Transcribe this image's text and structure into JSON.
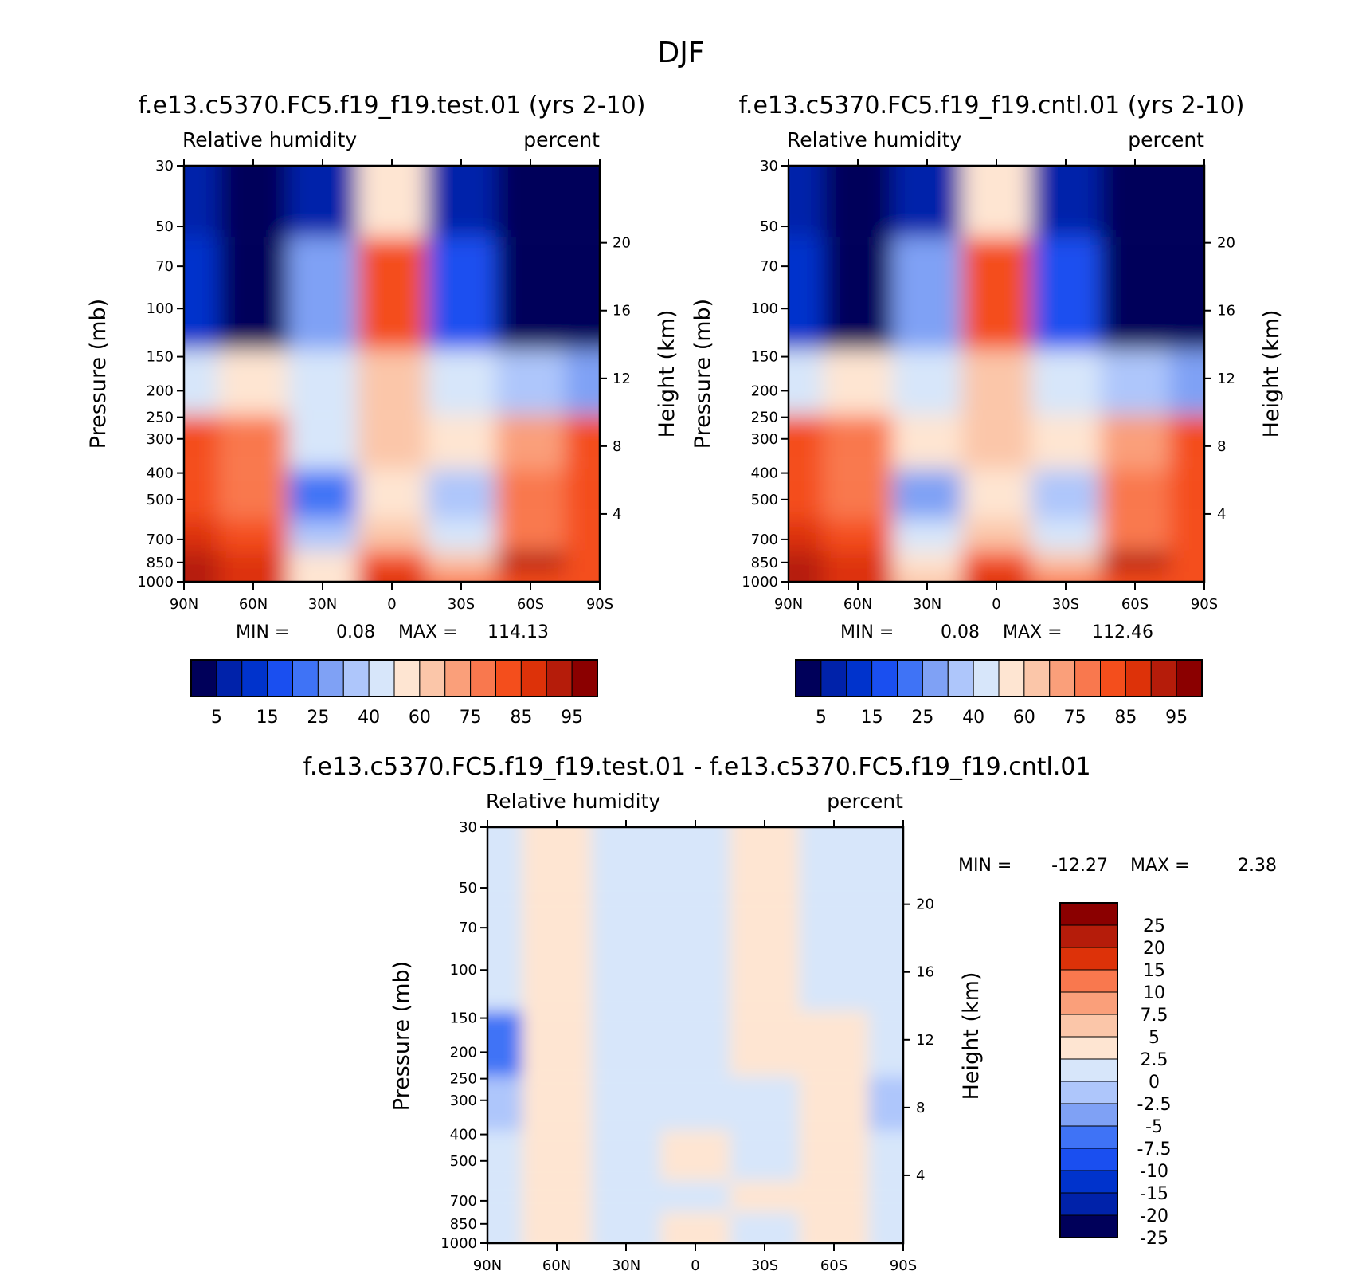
{
  "figure": {
    "title": "DJF",
    "colors": {
      "abs_scale": [
        "#00005a",
        "#0022aa",
        "#0033cc",
        "#1a4ff0",
        "#3f73f6",
        "#7fa1f5",
        "#aec6fb",
        "#d7e6fa",
        "#fee5d2",
        "#fbc6a9",
        "#fa9f7a",
        "#f9784e",
        "#f44e1c",
        "#dd3209",
        "#b51c0a",
        "#8b0000"
      ],
      "diff_scale": [
        "#8b0000",
        "#b51c0a",
        "#dd3209",
        "#f9784e",
        "#fa9f7a",
        "#fbc6a9",
        "#fee5d2",
        "#d7e6fa",
        "#aec6fb",
        "#7fa1f5",
        "#3f73f6",
        "#1a4ff0",
        "#0033cc",
        "#0022aa",
        "#00005a"
      ]
    }
  },
  "panels": [
    {
      "case": "f.e13.c5370.FC5.f19_f19.test.01 (yrs 2-10)",
      "left_label": "Relative humidity",
      "right_label": "percent",
      "min_label": "MIN =",
      "min_value": "0.08",
      "max_label": "MAX =",
      "max_value": "114.13"
    },
    {
      "case": "f.e13.c5370.FC5.f19_f19.cntl.01 (yrs 2-10)",
      "left_label": "Relative humidity",
      "right_label": "percent",
      "min_label": "MIN =",
      "min_value": "0.08",
      "max_label": "MAX =",
      "max_value": "112.46"
    },
    {
      "case": "f.e13.c5370.FC5.f19_f19.test.01 - f.e13.c5370.FC5.f19_f19.cntl.01",
      "left_label": "Relative humidity",
      "right_label": "percent",
      "min_label": "MIN =",
      "min_value": "-12.27",
      "max_label": "MAX =",
      "max_value": "2.38"
    }
  ],
  "axes": {
    "ylabel": "Pressure (mb)",
    "y2label": "Height (km)",
    "pressure_ticks": [
      "30",
      "50",
      "70",
      "100",
      "150",
      "200",
      "250",
      "300",
      "400",
      "500",
      "700",
      "850",
      "1000"
    ],
    "height_ticks": [
      "20",
      "16",
      "12",
      "8",
      "4"
    ],
    "lat_ticks": [
      "90N",
      "60N",
      "30N",
      "0",
      "30S",
      "60S",
      "90S"
    ]
  },
  "colorbars": {
    "abs_labels": [
      "5",
      "15",
      "25",
      "40",
      "60",
      "75",
      "85",
      "95"
    ],
    "diff_labels": [
      "25",
      "20",
      "15",
      "10",
      "7.5",
      "5",
      "2.5",
      "0",
      "-2.5",
      "-5",
      "-7.5",
      "-10",
      "-15",
      "-20",
      "-25"
    ]
  },
  "chart_data": [
    {
      "type": "heatmap",
      "title": "f.e13.c5370.FC5.f19_f19.test.01 (yrs 2-10)",
      "xlabel": "",
      "ylabel": "Pressure (mb)",
      "y2label": "Height (km)",
      "x": [
        90,
        60,
        30,
        0,
        -30,
        -60,
        -90
      ],
      "y": [
        30,
        100,
        200,
        300,
        500,
        700,
        850,
        1000
      ],
      "yscale": "log",
      "ylim": [
        30,
        1000
      ],
      "z": [
        [
          10,
          3,
          10,
          60,
          8,
          3,
          2
        ],
        [
          12,
          5,
          30,
          85,
          20,
          3,
          2
        ],
        [
          50,
          55,
          45,
          70,
          50,
          40,
          30
        ],
        [
          85,
          80,
          50,
          65,
          55,
          75,
          85
        ],
        [
          85,
          80,
          25,
          60,
          38,
          80,
          85
        ],
        [
          88,
          85,
          40,
          62,
          45,
          80,
          85
        ],
        [
          92,
          88,
          55,
          85,
          65,
          92,
          85
        ],
        [
          95,
          90,
          60,
          90,
          80,
          85,
          85
        ]
      ],
      "levels": [
        5,
        10,
        15,
        20,
        25,
        30,
        40,
        50,
        60,
        70,
        75,
        80,
        85,
        90,
        95
      ],
      "units": "percent"
    },
    {
      "type": "heatmap",
      "title": "f.e13.c5370.FC5.f19_f19.cntl.01 (yrs 2-10)",
      "xlabel": "",
      "ylabel": "Pressure (mb)",
      "y2label": "Height (km)",
      "x": [
        90,
        60,
        30,
        0,
        -30,
        -60,
        -90
      ],
      "y": [
        30,
        100,
        200,
        300,
        500,
        700,
        850,
        1000
      ],
      "yscale": "log",
      "ylim": [
        30,
        1000
      ],
      "z": [
        [
          10,
          3,
          10,
          60,
          8,
          3,
          2
        ],
        [
          12,
          5,
          30,
          85,
          20,
          3,
          2
        ],
        [
          50,
          55,
          45,
          70,
          50,
          40,
          30
        ],
        [
          85,
          80,
          52,
          65,
          55,
          75,
          85
        ],
        [
          85,
          80,
          27,
          60,
          40,
          80,
          85
        ],
        [
          88,
          85,
          42,
          62,
          47,
          80,
          85
        ],
        [
          92,
          88,
          56,
          85,
          66,
          92,
          85
        ],
        [
          95,
          90,
          61,
          90,
          80,
          85,
          85
        ]
      ],
      "levels": [
        5,
        10,
        15,
        20,
        25,
        30,
        40,
        50,
        60,
        70,
        75,
        80,
        85,
        90,
        95
      ],
      "units": "percent"
    },
    {
      "type": "heatmap",
      "title": "f.e13.c5370.FC5.f19_f19.test.01 - f.e13.c5370.FC5.f19_f19.cntl.01",
      "xlabel": "",
      "ylabel": "Pressure (mb)",
      "y2label": "Height (km)",
      "x": [
        90,
        60,
        30,
        0,
        -30,
        -60,
        -90
      ],
      "y": [
        30,
        100,
        200,
        300,
        500,
        700,
        850,
        1000
      ],
      "yscale": "log",
      "ylim": [
        30,
        1000
      ],
      "z": [
        [
          -1,
          1,
          -1,
          -1,
          1,
          -1,
          -1
        ],
        [
          -1,
          1,
          -1,
          -1,
          1,
          -1,
          -1
        ],
        [
          -8,
          1,
          -1,
          -1,
          1,
          1,
          -1
        ],
        [
          -3,
          1,
          -1,
          -1,
          -1,
          1,
          -3
        ],
        [
          -1,
          1,
          -1,
          1,
          -1,
          1,
          -1
        ],
        [
          -1,
          1,
          -1,
          -1,
          1,
          1,
          -1
        ],
        [
          -1,
          1,
          -1,
          1,
          -1,
          1,
          -1
        ],
        [
          -1,
          1,
          -1,
          1,
          -1,
          1,
          -1
        ]
      ],
      "levels": [
        -25,
        -20,
        -15,
        -10,
        -7.5,
        -5,
        -2.5,
        0,
        2.5,
        5,
        7.5,
        10,
        15,
        20,
        25
      ],
      "units": "percent"
    }
  ]
}
